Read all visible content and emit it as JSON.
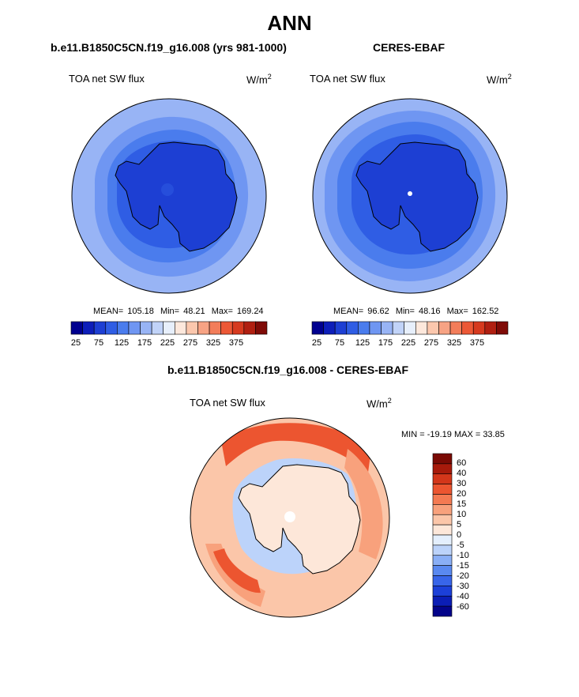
{
  "figure": {
    "title": "ANN",
    "units_base": "W/m",
    "units_exp": "2"
  },
  "panels": [
    {
      "title": "b.e11.B1850C5CN.f19_g16.008 (yrs 981-1000)",
      "variable": "TOA net SW flux",
      "mean_label": "MEAN=",
      "mean": "105.18",
      "min_label": "Min=",
      "min": "48.21",
      "max_label": "Max=",
      "max": "169.24"
    },
    {
      "title": "CERES-EBAF",
      "variable": "TOA net SW flux",
      "mean_label": "MEAN=",
      "mean": "96.62",
      "min_label": "Min=",
      "min": "48.16",
      "max_label": "Max=",
      "max": "162.52"
    },
    {
      "title": "b.e11.B1850C5CN.f19_g16.008 - CERES-EBAF",
      "variable": "TOA net SW flux",
      "minmax_text": "MIN = -19.19 MAX = 33.85"
    }
  ],
  "colorbar_abs": {
    "colors": [
      "#00008f",
      "#0d1eb9",
      "#1d3fd3",
      "#2f5de4",
      "#4a7ced",
      "#6f96f2",
      "#98b4f5",
      "#c1d3f8",
      "#e7effb",
      "#fde8dc",
      "#fbc7ad",
      "#f7a384",
      "#f27d5a",
      "#ec5836",
      "#d63a1f",
      "#b01f11",
      "#7f0b07"
    ],
    "tick_labels": [
      "25",
      "75",
      "125",
      "175",
      "225",
      "275",
      "325",
      "375"
    ]
  },
  "colorbar_diff": {
    "colors": [
      "#03048a",
      "#0b1eb5",
      "#1c40d8",
      "#3865e9",
      "#5a89f0",
      "#8aaff6",
      "#bcd3fa",
      "#e4effd",
      "#fde7d9",
      "#fbc6a9",
      "#f8a17c",
      "#f47a52",
      "#ec5530",
      "#d3361a",
      "#a71a0b",
      "#7a0a04"
    ],
    "tick_labels": [
      "60",
      "40",
      "30",
      "20",
      "15",
      "10",
      "5",
      "0",
      "-5",
      "-10",
      "-15",
      "-20",
      "-30",
      "-40",
      "-60"
    ]
  },
  "map_colors": {
    "abs_outer": "#98b4f5",
    "abs_ring2": "#6f96f2",
    "abs_ring3": "#4a7ced",
    "abs_ring4": "#2f5de4",
    "abs_land": "#1d3fd3",
    "diff_ocean": "#fbc6a9",
    "diff_ring": "#f8a17c",
    "diff_hot": "#ec5530",
    "diff_land": "#fde7d9",
    "diff_cool": "#bcd3fa",
    "coast": "#000000"
  }
}
